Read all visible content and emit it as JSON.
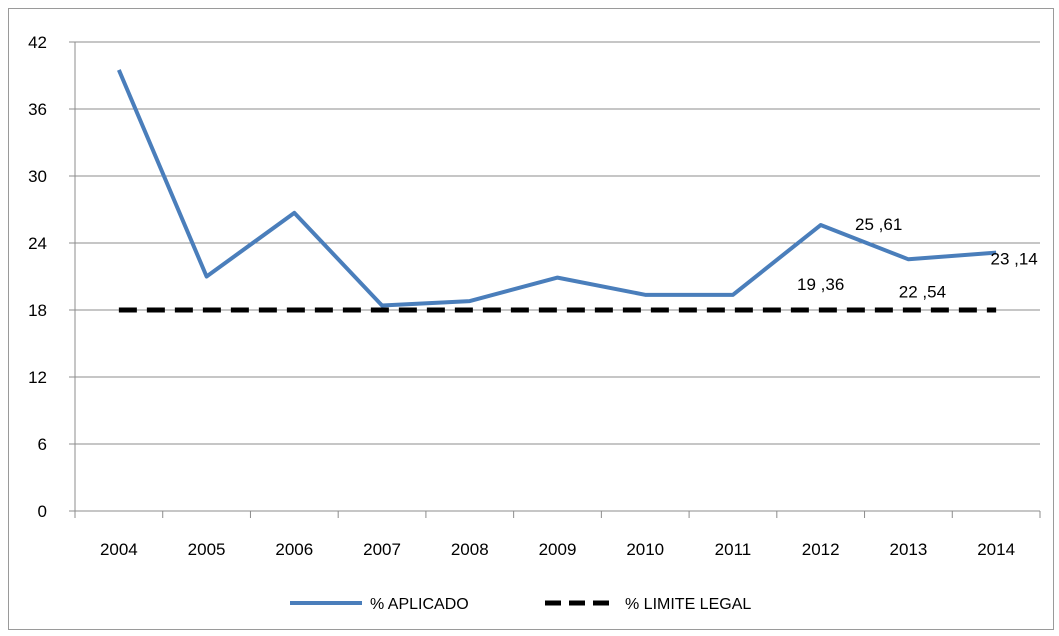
{
  "chart_data": {
    "type": "line",
    "title": "",
    "xlabel": "",
    "ylabel": "",
    "categories": [
      "2004",
      "2005",
      "2006",
      "2007",
      "2008",
      "2009",
      "2010",
      "2011",
      "2012",
      "2013",
      "2014"
    ],
    "ylim": [
      0,
      42
    ],
    "yticks": [
      0,
      6,
      12,
      18,
      24,
      30,
      36,
      42
    ],
    "grid": "horizontal",
    "legend_position": "bottom",
    "series": [
      {
        "name": "% APLICADO",
        "color": "#4a7ebb",
        "style": "solid",
        "values": [
          39.5,
          21.0,
          26.7,
          18.4,
          18.8,
          20.9,
          19.36,
          19.36,
          25.61,
          22.54,
          23.14
        ]
      },
      {
        "name": "% LIMITE LEGAL",
        "color": "#000000",
        "style": "dashed",
        "values": [
          18,
          18,
          18,
          18,
          18,
          18,
          18,
          18,
          18,
          18,
          18
        ]
      }
    ],
    "annotations": [
      {
        "text": "19 ,36",
        "category": "2012",
        "value": 19.36
      },
      {
        "text": "25 ,61",
        "category": "2012",
        "value": 25.61
      },
      {
        "text": "22 ,54",
        "category": "2013",
        "value": 22.54
      },
      {
        "text": "23 ,14",
        "category": "2014",
        "value": 23.14
      }
    ]
  }
}
